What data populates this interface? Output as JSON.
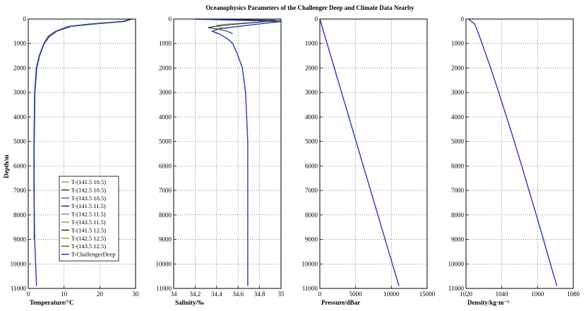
{
  "title": "Oceanophysics Parameters of the Challenger Deep and Climate Data Nearby",
  "depth_label": "Depth/m",
  "colors": {
    "legend_series": [
      "#9aa832",
      "#2b3a2b",
      "#5a5f9e",
      "#1e2e82",
      "#73918a",
      "#8aa040",
      "#2b3a2b",
      "#9aa832",
      "#5c6a3a",
      "#2a2ac0"
    ],
    "challenger": "#2a3ab0",
    "light": "#8aa83c",
    "dark": "#203040"
  },
  "chart_data": [
    {
      "type": "line",
      "panel": "temperature",
      "xlabel": "Temperature/°C",
      "ylabel": "Depth/m",
      "xlim": [
        0,
        30
      ],
      "ylim": [
        11000,
        0
      ],
      "x_ticks": [
        0,
        10,
        20,
        30
      ],
      "y_ticks": [
        0,
        1000,
        2000,
        3000,
        4000,
        5000,
        6000,
        7000,
        8000,
        9000,
        10000,
        11000
      ],
      "legend": [
        "T-(141.5 10.5)",
        "T-(142.5 10.5)",
        "T-(143.5 10.5)",
        "T-(141.5 11.5)",
        "T-(142.5 11.5)",
        "T-(143.5 11.5)",
        "T-(141.5 12.5)",
        "T-(142.5 12.5)",
        "T-(143.5 12.5)",
        "T-ChallengerDeep"
      ],
      "legend_placement": "lower-left",
      "series": [
        {
          "style": "light",
          "depth": [
            0,
            100,
            200,
            300,
            500,
            700,
            1000,
            1500,
            2000,
            3000,
            5000,
            7000,
            9000
          ],
          "values": [
            28.5,
            26,
            17,
            11,
            7.5,
            5.5,
            4.3,
            3,
            2.2,
            1.8,
            1.6,
            1.6,
            1.6
          ]
        },
        {
          "style": "dark",
          "depth": [
            0,
            100,
            200,
            300,
            500,
            700,
            1000,
            1500,
            2000,
            3000,
            5000,
            7000,
            9000
          ],
          "values": [
            29,
            27,
            19,
            12,
            8,
            6,
            4.5,
            3.2,
            2.4,
            1.9,
            1.7,
            1.7,
            1.7
          ]
        },
        {
          "style": "challenger",
          "depth": [
            0,
            100,
            200,
            300,
            500,
            700,
            1000,
            1500,
            2000,
            3000,
            5000,
            7000,
            9000,
            10900
          ],
          "values": [
            29,
            26.5,
            18,
            11.5,
            7.8,
            5.8,
            4.4,
            3.1,
            2.3,
            1.8,
            1.6,
            1.6,
            1.8,
            2.3
          ]
        }
      ]
    },
    {
      "type": "line",
      "panel": "salinity",
      "xlabel": "Salinity/‰",
      "xlim": [
        34,
        35
      ],
      "ylim": [
        11000,
        0
      ],
      "x_ticks": [
        34,
        34.2,
        34.4,
        34.6,
        34.8,
        35
      ],
      "series": [
        {
          "style": "light",
          "depth": [
            0,
            50,
            100,
            150,
            200,
            250,
            300,
            350,
            400
          ],
          "values": [
            34.3,
            35,
            34.9,
            34.7,
            34.5,
            34.4,
            34.4,
            34.45,
            34.5
          ]
        },
        {
          "style": "dark",
          "depth": [
            0,
            50,
            100,
            150,
            200,
            250,
            300,
            350,
            400,
            500,
            600
          ],
          "values": [
            34.15,
            34.95,
            34.85,
            34.75,
            34.6,
            34.48,
            34.38,
            34.32,
            34.4,
            34.5,
            34.55
          ]
        },
        {
          "style": "challenger",
          "depth": [
            0,
            100,
            200,
            300,
            400,
            500,
            600,
            800,
            1000,
            1500,
            2000,
            3000,
            4000,
            5000,
            7000,
            9000,
            10900
          ],
          "values": [
            34.2,
            35,
            34.8,
            34.6,
            34.42,
            34.36,
            34.42,
            34.5,
            34.55,
            34.6,
            34.64,
            34.67,
            34.68,
            34.69,
            34.69,
            34.69,
            34.69
          ]
        }
      ]
    },
    {
      "type": "line",
      "panel": "pressure",
      "xlabel": "Pressure/dBar",
      "xlim": [
        0,
        15000
      ],
      "ylim": [
        11000,
        0
      ],
      "x_ticks": [
        0,
        5000,
        10000,
        15000
      ],
      "series": [
        {
          "style": "challenger",
          "depth": [
            0,
            10900
          ],
          "values": [
            0,
            11050
          ]
        }
      ]
    },
    {
      "type": "line",
      "panel": "density",
      "xlabel": "Density/kg·m⁻³",
      "xlim": [
        1020,
        1080
      ],
      "ylim": [
        11000,
        0
      ],
      "x_ticks": [
        1020,
        1040,
        1060,
        1080
      ],
      "series": [
        {
          "style": "challenger",
          "depth": [
            0,
            100,
            200,
            400,
            700,
            1000,
            2000,
            3000,
            4000,
            5000,
            6000,
            7000,
            8000,
            9000,
            10000,
            10900
          ],
          "values": [
            1021.5,
            1023,
            1024.8,
            1026,
            1027.5,
            1029,
            1033.8,
            1038.3,
            1042.7,
            1047,
            1051.2,
            1055.2,
            1059.3,
            1063.3,
            1067.2,
            1070.8
          ]
        }
      ]
    }
  ]
}
